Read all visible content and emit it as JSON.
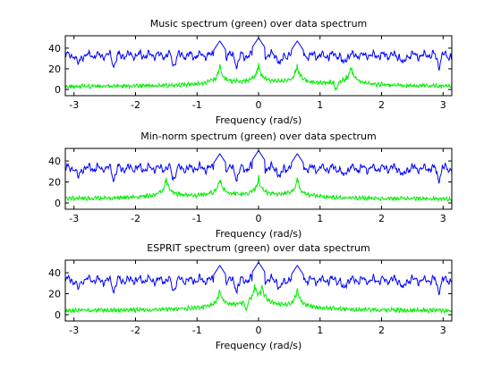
{
  "chart_data": [
    {
      "type": "line",
      "title": "Music spectrum (green) over data spectrum",
      "xlabel": "Frequency (rad/s)",
      "ylabel": "",
      "xlim": [
        -3.1416,
        3.1416
      ],
      "ylim": [
        -6,
        52
      ],
      "xticks": [
        -3,
        -2,
        -1,
        0,
        1,
        2,
        3
      ],
      "yticks": [
        0,
        20,
        40
      ],
      "grid": false,
      "series": [
        {
          "color": "#0000ff",
          "baseline": 33,
          "shape": "ripple",
          "peaks": [
            [
              0.0,
              50
            ],
            [
              -0.63,
              47
            ],
            [
              0.63,
              47
            ]
          ],
          "dips": [
            -2.35,
            -1.38,
            -0.35,
            0.35,
            1.38,
            2.35,
            -2.93,
            2.93
          ]
        },
        {
          "color": "#00ee00",
          "baseline": 2,
          "shape": "peaks",
          "peaks": [
            [
              -0.63,
              22
            ],
            [
              0.0,
              22
            ],
            [
              0.63,
              22
            ],
            [
              1.5,
              22
            ]
          ],
          "dips": [
            1.26
          ]
        }
      ]
    },
    {
      "type": "line",
      "title": "Min-norm spectrum (green) over data spectrum",
      "xlabel": "Frequency (rad/s)",
      "ylabel": "",
      "xlim": [
        -3.1416,
        3.1416
      ],
      "ylim": [
        -6,
        52
      ],
      "xticks": [
        -3,
        -2,
        -1,
        0,
        1,
        2,
        3
      ],
      "yticks": [
        0,
        20,
        40
      ],
      "grid": false,
      "series": [
        {
          "color": "#0000ff",
          "baseline": 33,
          "shape": "ripple",
          "peaks": [
            [
              0.0,
              50
            ],
            [
              -0.63,
              47
            ],
            [
              0.63,
              47
            ]
          ],
          "dips": [
            -2.35,
            -1.38,
            -0.35,
            0.35,
            1.38,
            2.35,
            -2.93,
            2.93
          ]
        },
        {
          "color": "#00ee00",
          "baseline": 3,
          "shape": "peaks",
          "peaks": [
            [
              -1.5,
              22
            ],
            [
              -0.63,
              22
            ],
            [
              0.0,
              22
            ],
            [
              0.63,
              22
            ]
          ],
          "dips": []
        }
      ]
    },
    {
      "type": "line",
      "title": "ESPRIT spectrum (green) over data spectrum",
      "xlabel": "Frequency (rad/s)",
      "ylabel": "",
      "xlim": [
        -3.1416,
        3.1416
      ],
      "ylim": [
        -6,
        52
      ],
      "xticks": [
        -3,
        -2,
        -1,
        0,
        1,
        2,
        3
      ],
      "yticks": [
        0,
        20,
        40
      ],
      "grid": false,
      "series": [
        {
          "color": "#0000ff",
          "baseline": 33,
          "shape": "ripple",
          "peaks": [
            [
              0.0,
              50
            ],
            [
              -0.63,
              47
            ],
            [
              0.63,
              47
            ]
          ],
          "dips": [
            -2.35,
            -1.38,
            -0.35,
            0.35,
            1.38,
            2.35,
            -2.93,
            2.93
          ]
        },
        {
          "color": "#00ee00",
          "baseline": 3,
          "shape": "peaks",
          "peaks": [
            [
              -0.63,
              22
            ],
            [
              -0.06,
              22
            ],
            [
              0.06,
              22
            ],
            [
              0.63,
              22
            ]
          ],
          "dips": [
            -0.2
          ]
        }
      ]
    }
  ]
}
